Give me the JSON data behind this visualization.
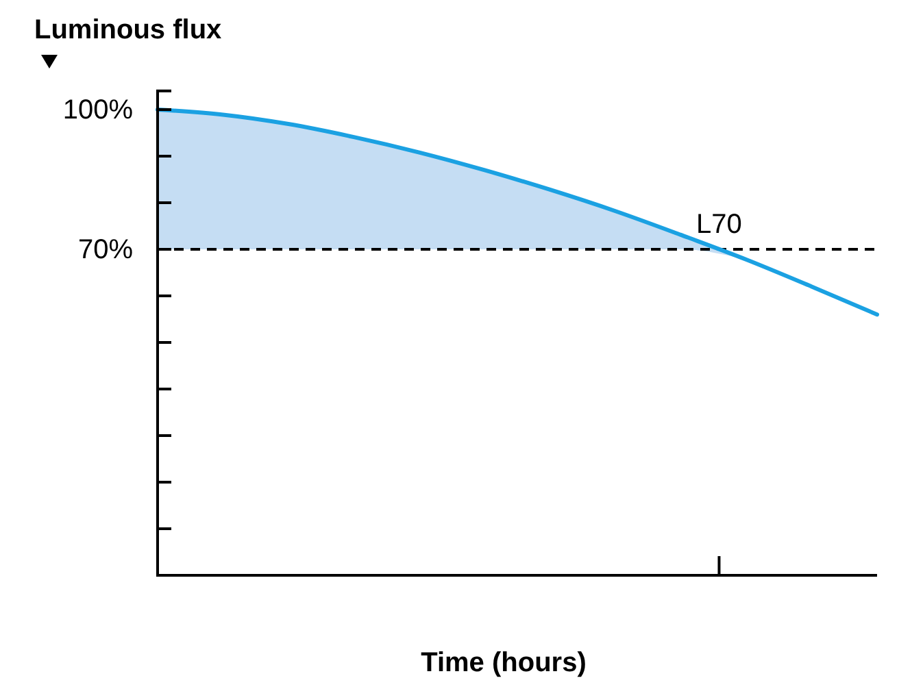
{
  "chart_data": {
    "type": "line",
    "ylabel": "Luminous flux",
    "xlabel": "Time (hours)",
    "categories": [
      null,
      null,
      null,
      null,
      null,
      null,
      null,
      null,
      null,
      null,
      null,
      null
    ],
    "series": [
      {
        "color": "#1ba1e2",
        "values": [
          100,
          98.9,
          96.9,
          94.1,
          90.8,
          87.0,
          82.8,
          78.2,
          73.1,
          67.8,
          62.0,
          56
        ],
        "upper": [
          100,
          98.9,
          96.9,
          94.1,
          90.8,
          87.0,
          82.8,
          78.2,
          73.1,
          67.8,
          null,
          null
        ],
        "lower": [
          70,
          70,
          70,
          70,
          70,
          70,
          70,
          70,
          70,
          67.8,
          null,
          null
        ]
      }
    ],
    "ylim": [
      0,
      104
    ],
    "yticks": [
      {
        "value": 10,
        "label": null
      },
      {
        "value": 20,
        "label": null
      },
      {
        "value": 30,
        "label": null
      },
      {
        "value": 40,
        "label": null
      },
      {
        "value": 50,
        "label": null
      },
      {
        "value": 60,
        "label": null
      },
      {
        "value": 70,
        "label": "70%"
      },
      {
        "value": 80,
        "label": null
      },
      {
        "value": 90,
        "label": null
      },
      {
        "value": 100,
        "label": "100%"
      }
    ],
    "ref_lines": [
      {
        "axis": "y",
        "value": 70,
        "label": "L70",
        "color": "#000000",
        "line_style": "dashed"
      }
    ],
    "grid": false,
    "marker": "none",
    "line_style": "solid"
  }
}
